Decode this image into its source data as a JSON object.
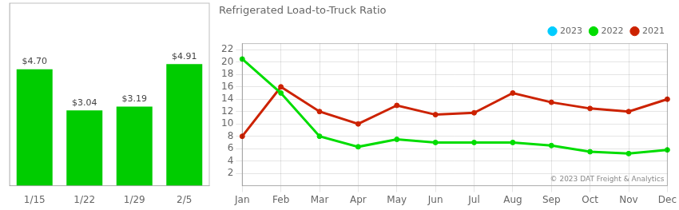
{
  "chart_data": [
    {
      "type": "bar",
      "categories": [
        "1/15",
        "1/22",
        "1/29",
        "2/5"
      ],
      "values": [
        4.7,
        3.04,
        3.19,
        4.91
      ],
      "value_labels": [
        "$4.70",
        "$3.04",
        "$3.19",
        "$4.91"
      ],
      "data_labels": true,
      "color": "#00cc00",
      "ylim": [
        0,
        7.365
      ],
      "tick_labels": "x",
      "grid": false
    },
    {
      "type": "line",
      "title": "Refrigerated Load-to-Truck Ratio",
      "categories": [
        "Jan",
        "Feb",
        "Mar",
        "Apr",
        "May",
        "Jun",
        "Jul",
        "Aug",
        "Sep",
        "Oct",
        "Nov",
        "Dec"
      ],
      "series": [
        {
          "name": "2023",
          "color": "#00ccff",
          "values": [
            null,
            null,
            null,
            null,
            null,
            null,
            null,
            null,
            null,
            null,
            null,
            null
          ]
        },
        {
          "name": "2022",
          "color": "#00dd00",
          "values": [
            20.5,
            15.0,
            8.0,
            6.3,
            7.5,
            7.0,
            7.0,
            7.0,
            6.5,
            5.5,
            5.2,
            5.8
          ]
        },
        {
          "name": "2021",
          "color": "#cc2200",
          "values": [
            8.0,
            16.0,
            12.0,
            10.0,
            13.0,
            11.5,
            11.8,
            15.0,
            13.5,
            12.5,
            12.0,
            14.0
          ]
        }
      ],
      "marker": "circle",
      "ylim": [
        0,
        23
      ],
      "yticks": [
        2,
        4,
        6,
        8,
        10,
        12,
        14,
        16,
        18,
        20,
        22
      ],
      "grid": true,
      "legend": "upper right",
      "annotations": [
        "© 2023 DAT Freight & Analytics"
      ]
    }
  ]
}
